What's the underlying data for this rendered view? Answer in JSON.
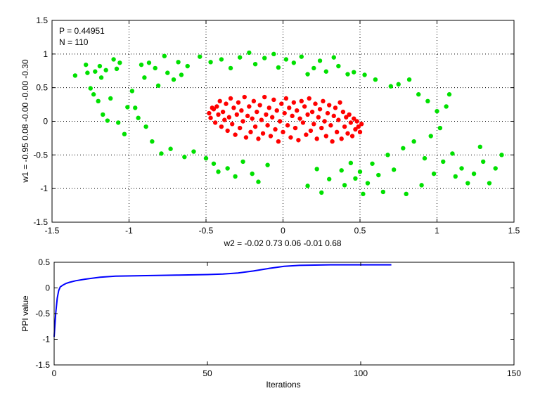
{
  "chart_data": [
    {
      "type": "scatter",
      "title": "",
      "xlabel": "w2 = -0.02  0.73  0.06  -0.01  0.68",
      "ylabel": "w1 = -0.95  0.08  -0.00  -0.00  -0.30",
      "xlim": [
        -1.5,
        1.5
      ],
      "ylim": [
        -1.5,
        1.5
      ],
      "xticks": [
        -1.5,
        -1,
        -0.5,
        0,
        0.5,
        1,
        1.5
      ],
      "yticks": [
        -1.5,
        -1,
        -0.5,
        0,
        0.5,
        1,
        1.5
      ],
      "grid": true,
      "annotations": [
        "P = 0.44951",
        "N = 110"
      ],
      "series": [
        {
          "color": "#00e000",
          "points": [
            [
              -1.35,
              0.68
            ],
            [
              -1.28,
              0.84
            ],
            [
              -1.27,
              0.72
            ],
            [
              -1.25,
              0.49
            ],
            [
              -1.23,
              0.4
            ],
            [
              -1.22,
              0.74
            ],
            [
              -1.2,
              0.3
            ],
            [
              -1.19,
              0.82
            ],
            [
              -1.18,
              0.65
            ],
            [
              -1.17,
              0.1
            ],
            [
              -1.15,
              0.76
            ],
            [
              -1.14,
              0.01
            ],
            [
              -1.12,
              0.34
            ],
            [
              -1.1,
              0.92
            ],
            [
              -1.08,
              0.78
            ],
            [
              -1.07,
              -0.02
            ],
            [
              -1.06,
              0.87
            ],
            [
              -1.03,
              -0.19
            ],
            [
              -1.01,
              0.21
            ],
            [
              -0.98,
              0.45
            ],
            [
              -0.96,
              0.2
            ],
            [
              -0.94,
              0.05
            ],
            [
              -0.92,
              0.84
            ],
            [
              -0.9,
              0.65
            ],
            [
              -0.89,
              -0.08
            ],
            [
              -0.87,
              0.87
            ],
            [
              -0.85,
              -0.3
            ],
            [
              -0.83,
              0.79
            ],
            [
              -0.81,
              0.53
            ],
            [
              -0.79,
              -0.48
            ],
            [
              -0.77,
              0.97
            ],
            [
              -0.75,
              0.72
            ],
            [
              -0.73,
              -0.41
            ],
            [
              -0.71,
              0.62
            ],
            [
              -0.68,
              0.88
            ],
            [
              -0.66,
              0.69
            ],
            [
              -0.64,
              -0.53
            ],
            [
              -0.62,
              0.82
            ],
            [
              -0.58,
              -0.45
            ],
            [
              -0.54,
              0.96
            ],
            [
              -0.5,
              -0.55
            ],
            [
              -0.47,
              0.88
            ],
            [
              -0.45,
              -0.63
            ],
            [
              -0.42,
              -0.75
            ],
            [
              -0.4,
              0.92
            ],
            [
              -0.36,
              -0.7
            ],
            [
              -0.34,
              0.79
            ],
            [
              -0.31,
              -0.82
            ],
            [
              -0.28,
              0.95
            ],
            [
              -0.26,
              -0.6
            ],
            [
              -0.22,
              1.02
            ],
            [
              -0.2,
              -0.78
            ],
            [
              -0.18,
              0.85
            ],
            [
              -0.16,
              -0.9
            ],
            [
              -0.12,
              0.94
            ],
            [
              -0.1,
              -0.65
            ],
            [
              -0.06,
              1.0
            ],
            [
              -0.03,
              0.8
            ],
            [
              0.02,
              0.92
            ],
            [
              0.07,
              0.87
            ],
            [
              0.12,
              0.96
            ],
            [
              0.16,
              0.7
            ],
            [
              0.16,
              -0.96
            ],
            [
              0.2,
              0.79
            ],
            [
              0.22,
              -0.71
            ],
            [
              0.24,
              0.9
            ],
            [
              0.25,
              -1.06
            ],
            [
              0.28,
              0.74
            ],
            [
              0.3,
              -0.86
            ],
            [
              0.33,
              0.95
            ],
            [
              0.36,
              0.82
            ],
            [
              0.38,
              -0.73
            ],
            [
              0.4,
              -0.95
            ],
            [
              0.42,
              0.7
            ],
            [
              0.44,
              -0.62
            ],
            [
              0.46,
              0.73
            ],
            [
              0.47,
              -0.85
            ],
            [
              0.5,
              -0.75
            ],
            [
              0.52,
              -1.08
            ],
            [
              0.53,
              0.69
            ],
            [
              0.55,
              -0.92
            ],
            [
              0.58,
              -0.63
            ],
            [
              0.6,
              0.62
            ],
            [
              0.62,
              -0.8
            ],
            [
              0.65,
              -1.05
            ],
            [
              0.68,
              -0.5
            ],
            [
              0.7,
              0.52
            ],
            [
              0.72,
              -0.72
            ],
            [
              0.75,
              0.55
            ],
            [
              0.78,
              -0.4
            ],
            [
              0.8,
              -1.08
            ],
            [
              0.82,
              0.62
            ],
            [
              0.85,
              -0.3
            ],
            [
              0.88,
              0.4
            ],
            [
              0.9,
              -0.95
            ],
            [
              0.92,
              -0.55
            ],
            [
              0.94,
              0.3
            ],
            [
              0.96,
              -0.22
            ],
            [
              0.98,
              -0.78
            ],
            [
              1.0,
              0.15
            ],
            [
              1.02,
              -0.1
            ],
            [
              1.04,
              -0.6
            ],
            [
              1.06,
              0.22
            ],
            [
              1.08,
              0.4
            ],
            [
              1.1,
              -0.48
            ],
            [
              1.12,
              -0.82
            ],
            [
              1.16,
              -0.7
            ],
            [
              1.2,
              -0.92
            ],
            [
              1.24,
              -0.78
            ],
            [
              1.28,
              -0.38
            ],
            [
              1.3,
              -0.6
            ],
            [
              1.34,
              -0.92
            ],
            [
              1.38,
              -0.7
            ],
            [
              1.42,
              -0.5
            ]
          ]
        },
        {
          "color": "#ff0000",
          "points": [
            [
              -0.48,
              0.12
            ],
            [
              -0.47,
              0.05
            ],
            [
              -0.45,
              0.18
            ],
            [
              -0.44,
              -0.02
            ],
            [
              -0.43,
              0.22
            ],
            [
              -0.42,
              0.1
            ],
            [
              -0.41,
              0.3
            ],
            [
              -0.4,
              -0.08
            ],
            [
              -0.39,
              0.14
            ],
            [
              -0.38,
              0.02
            ],
            [
              -0.37,
              0.26
            ],
            [
              -0.36,
              -0.14
            ],
            [
              -0.35,
              0.06
            ],
            [
              -0.34,
              0.34
            ],
            [
              -0.33,
              -0.04
            ],
            [
              -0.32,
              0.2
            ],
            [
              -0.31,
              -0.2
            ],
            [
              -0.3,
              0.1
            ],
            [
              -0.29,
              0.28
            ],
            [
              -0.28,
              -0.1
            ],
            [
              -0.27,
              0.16
            ],
            [
              -0.26,
              0.0
            ],
            [
              -0.25,
              0.36
            ],
            [
              -0.24,
              -0.24
            ],
            [
              -0.23,
              0.08
            ],
            [
              -0.22,
              0.22
            ],
            [
              -0.21,
              -0.16
            ],
            [
              -0.2,
              0.04
            ],
            [
              -0.19,
              0.3
            ],
            [
              -0.18,
              -0.08
            ],
            [
              -0.17,
              0.14
            ],
            [
              -0.16,
              -0.26
            ],
            [
              -0.15,
              0.24
            ],
            [
              -0.14,
              0.02
            ],
            [
              -0.13,
              -0.18
            ],
            [
              -0.12,
              0.36
            ],
            [
              -0.11,
              0.1
            ],
            [
              -0.1,
              -0.06
            ],
            [
              -0.09,
              0.2
            ],
            [
              -0.08,
              -0.22
            ],
            [
              -0.07,
              0.06
            ],
            [
              -0.06,
              0.32
            ],
            [
              -0.05,
              -0.12
            ],
            [
              -0.04,
              0.16
            ],
            [
              -0.03,
              -0.3
            ],
            [
              -0.02,
              0.0
            ],
            [
              -0.01,
              0.26
            ],
            [
              0.0,
              -0.16
            ],
            [
              0.01,
              0.12
            ],
            [
              0.02,
              0.34
            ],
            [
              0.03,
              -0.06
            ],
            [
              0.04,
              0.2
            ],
            [
              0.05,
              -0.24
            ],
            [
              0.06,
              0.08
            ],
            [
              0.07,
              0.28
            ],
            [
              0.08,
              -0.1
            ],
            [
              0.09,
              0.16
            ],
            [
              0.1,
              -0.28
            ],
            [
              0.11,
              0.04
            ],
            [
              0.12,
              0.3
            ],
            [
              0.13,
              -0.02
            ],
            [
              0.14,
              0.22
            ],
            [
              0.15,
              -0.2
            ],
            [
              0.16,
              0.1
            ],
            [
              0.17,
              0.34
            ],
            [
              0.18,
              -0.14
            ],
            [
              0.19,
              0.14
            ],
            [
              0.2,
              -0.04
            ],
            [
              0.21,
              0.26
            ],
            [
              0.22,
              -0.26
            ],
            [
              0.23,
              0.06
            ],
            [
              0.24,
              0.18
            ],
            [
              0.25,
              -0.1
            ],
            [
              0.26,
              0.3
            ],
            [
              0.27,
              0.0
            ],
            [
              0.28,
              -0.22
            ],
            [
              0.29,
              0.12
            ],
            [
              0.3,
              0.24
            ],
            [
              0.31,
              -0.06
            ],
            [
              0.32,
              -0.3
            ],
            [
              0.33,
              0.08
            ],
            [
              0.34,
              0.2
            ],
            [
              0.35,
              -0.16
            ],
            [
              0.36,
              0.02
            ],
            [
              0.37,
              0.28
            ],
            [
              0.38,
              -0.26
            ],
            [
              0.39,
              0.14
            ],
            [
              0.4,
              -0.08
            ],
            [
              0.41,
              0.06
            ],
            [
              0.42,
              -0.18
            ],
            [
              0.43,
              0.1
            ],
            [
              0.44,
              -0.02
            ],
            [
              0.45,
              -0.22
            ],
            [
              0.46,
              0.04
            ],
            [
              0.47,
              -0.12
            ],
            [
              0.48,
              0.0
            ],
            [
              0.49,
              -0.08
            ],
            [
              0.5,
              -0.16
            ],
            [
              0.51,
              -0.04
            ],
            [
              -0.46,
              0.2
            ]
          ]
        }
      ]
    },
    {
      "type": "line",
      "title": "",
      "xlabel": "Iterations",
      "ylabel": "PPI value",
      "xlim": [
        0,
        150
      ],
      "ylim": [
        -1.5,
        0.5
      ],
      "xticks": [
        0,
        50,
        100,
        150
      ],
      "yticks": [
        -1.5,
        -1,
        -0.5,
        0,
        0.5
      ],
      "grid": false,
      "series": [
        {
          "color": "#0000ff",
          "x": [
            0,
            0.5,
            1,
            1.5,
            2,
            3,
            4,
            5,
            7,
            10,
            15,
            20,
            30,
            40,
            50,
            55,
            60,
            65,
            70,
            75,
            80,
            90,
            100,
            110
          ],
          "y": [
            -0.95,
            -0.5,
            -0.2,
            -0.05,
            0.02,
            0.06,
            0.09,
            0.11,
            0.14,
            0.17,
            0.21,
            0.23,
            0.24,
            0.25,
            0.26,
            0.27,
            0.29,
            0.33,
            0.38,
            0.42,
            0.44,
            0.45,
            0.45,
            0.45
          ]
        }
      ]
    }
  ]
}
